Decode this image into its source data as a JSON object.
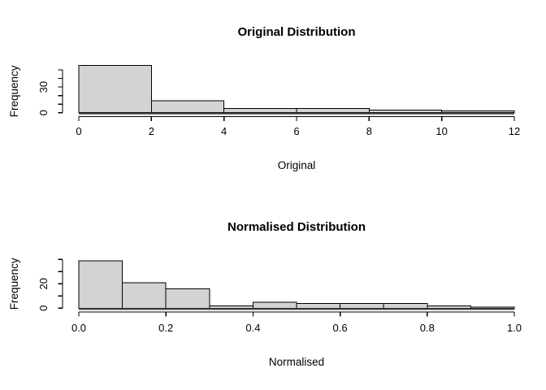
{
  "figure": {
    "background_color": "#ffffff",
    "bar_fill_color": "#d3d3d3",
    "bar_stroke_color": "#000000",
    "text_color": "#000000",
    "layout": "two stacked R-style base-graphics histograms"
  },
  "chart_data": [
    {
      "type": "bar",
      "subtype": "histogram",
      "title": "Original Distribution",
      "xlabel": "Original",
      "ylabel": "Frequency",
      "bin_edges": [
        0,
        2,
        4,
        6,
        8,
        10,
        12
      ],
      "counts": [
        55,
        14,
        5,
        5,
        3,
        2
      ],
      "xlim": [
        0,
        12
      ],
      "x_tick_values": [
        0,
        2,
        4,
        6,
        8,
        10,
        12
      ],
      "x_tick_labels": [
        "0",
        "2",
        "4",
        "6",
        "8",
        "10",
        "12"
      ],
      "y_tick_values": [
        0,
        10,
        20,
        30,
        40,
        50
      ],
      "y_tick_labels_shown": {
        "0": "0",
        "30": "30"
      },
      "ylim": [
        0,
        56
      ],
      "grid": false,
      "legend": "none"
    },
    {
      "type": "bar",
      "subtype": "histogram",
      "title": "Normalised Distribution",
      "xlabel": "Normalised",
      "ylabel": "Frequency",
      "bin_edges": [
        0,
        0.1,
        0.2,
        0.3,
        0.4,
        0.5,
        0.6,
        0.7,
        0.8,
        0.9,
        1.0
      ],
      "counts": [
        39,
        21,
        16,
        2,
        5,
        4,
        4,
        4,
        2,
        1
      ],
      "xlim": [
        0,
        1
      ],
      "x_tick_values": [
        0,
        0.2,
        0.4,
        0.6,
        0.8,
        1.0
      ],
      "x_tick_labels": [
        "0.0",
        "0.2",
        "0.4",
        "0.6",
        "0.8",
        "1.0"
      ],
      "y_tick_values": [
        0,
        10,
        20,
        30,
        40
      ],
      "y_tick_labels_shown": {
        "0": "0",
        "20": "20"
      },
      "ylim": [
        0,
        40
      ],
      "grid": false,
      "legend": "none"
    }
  ]
}
